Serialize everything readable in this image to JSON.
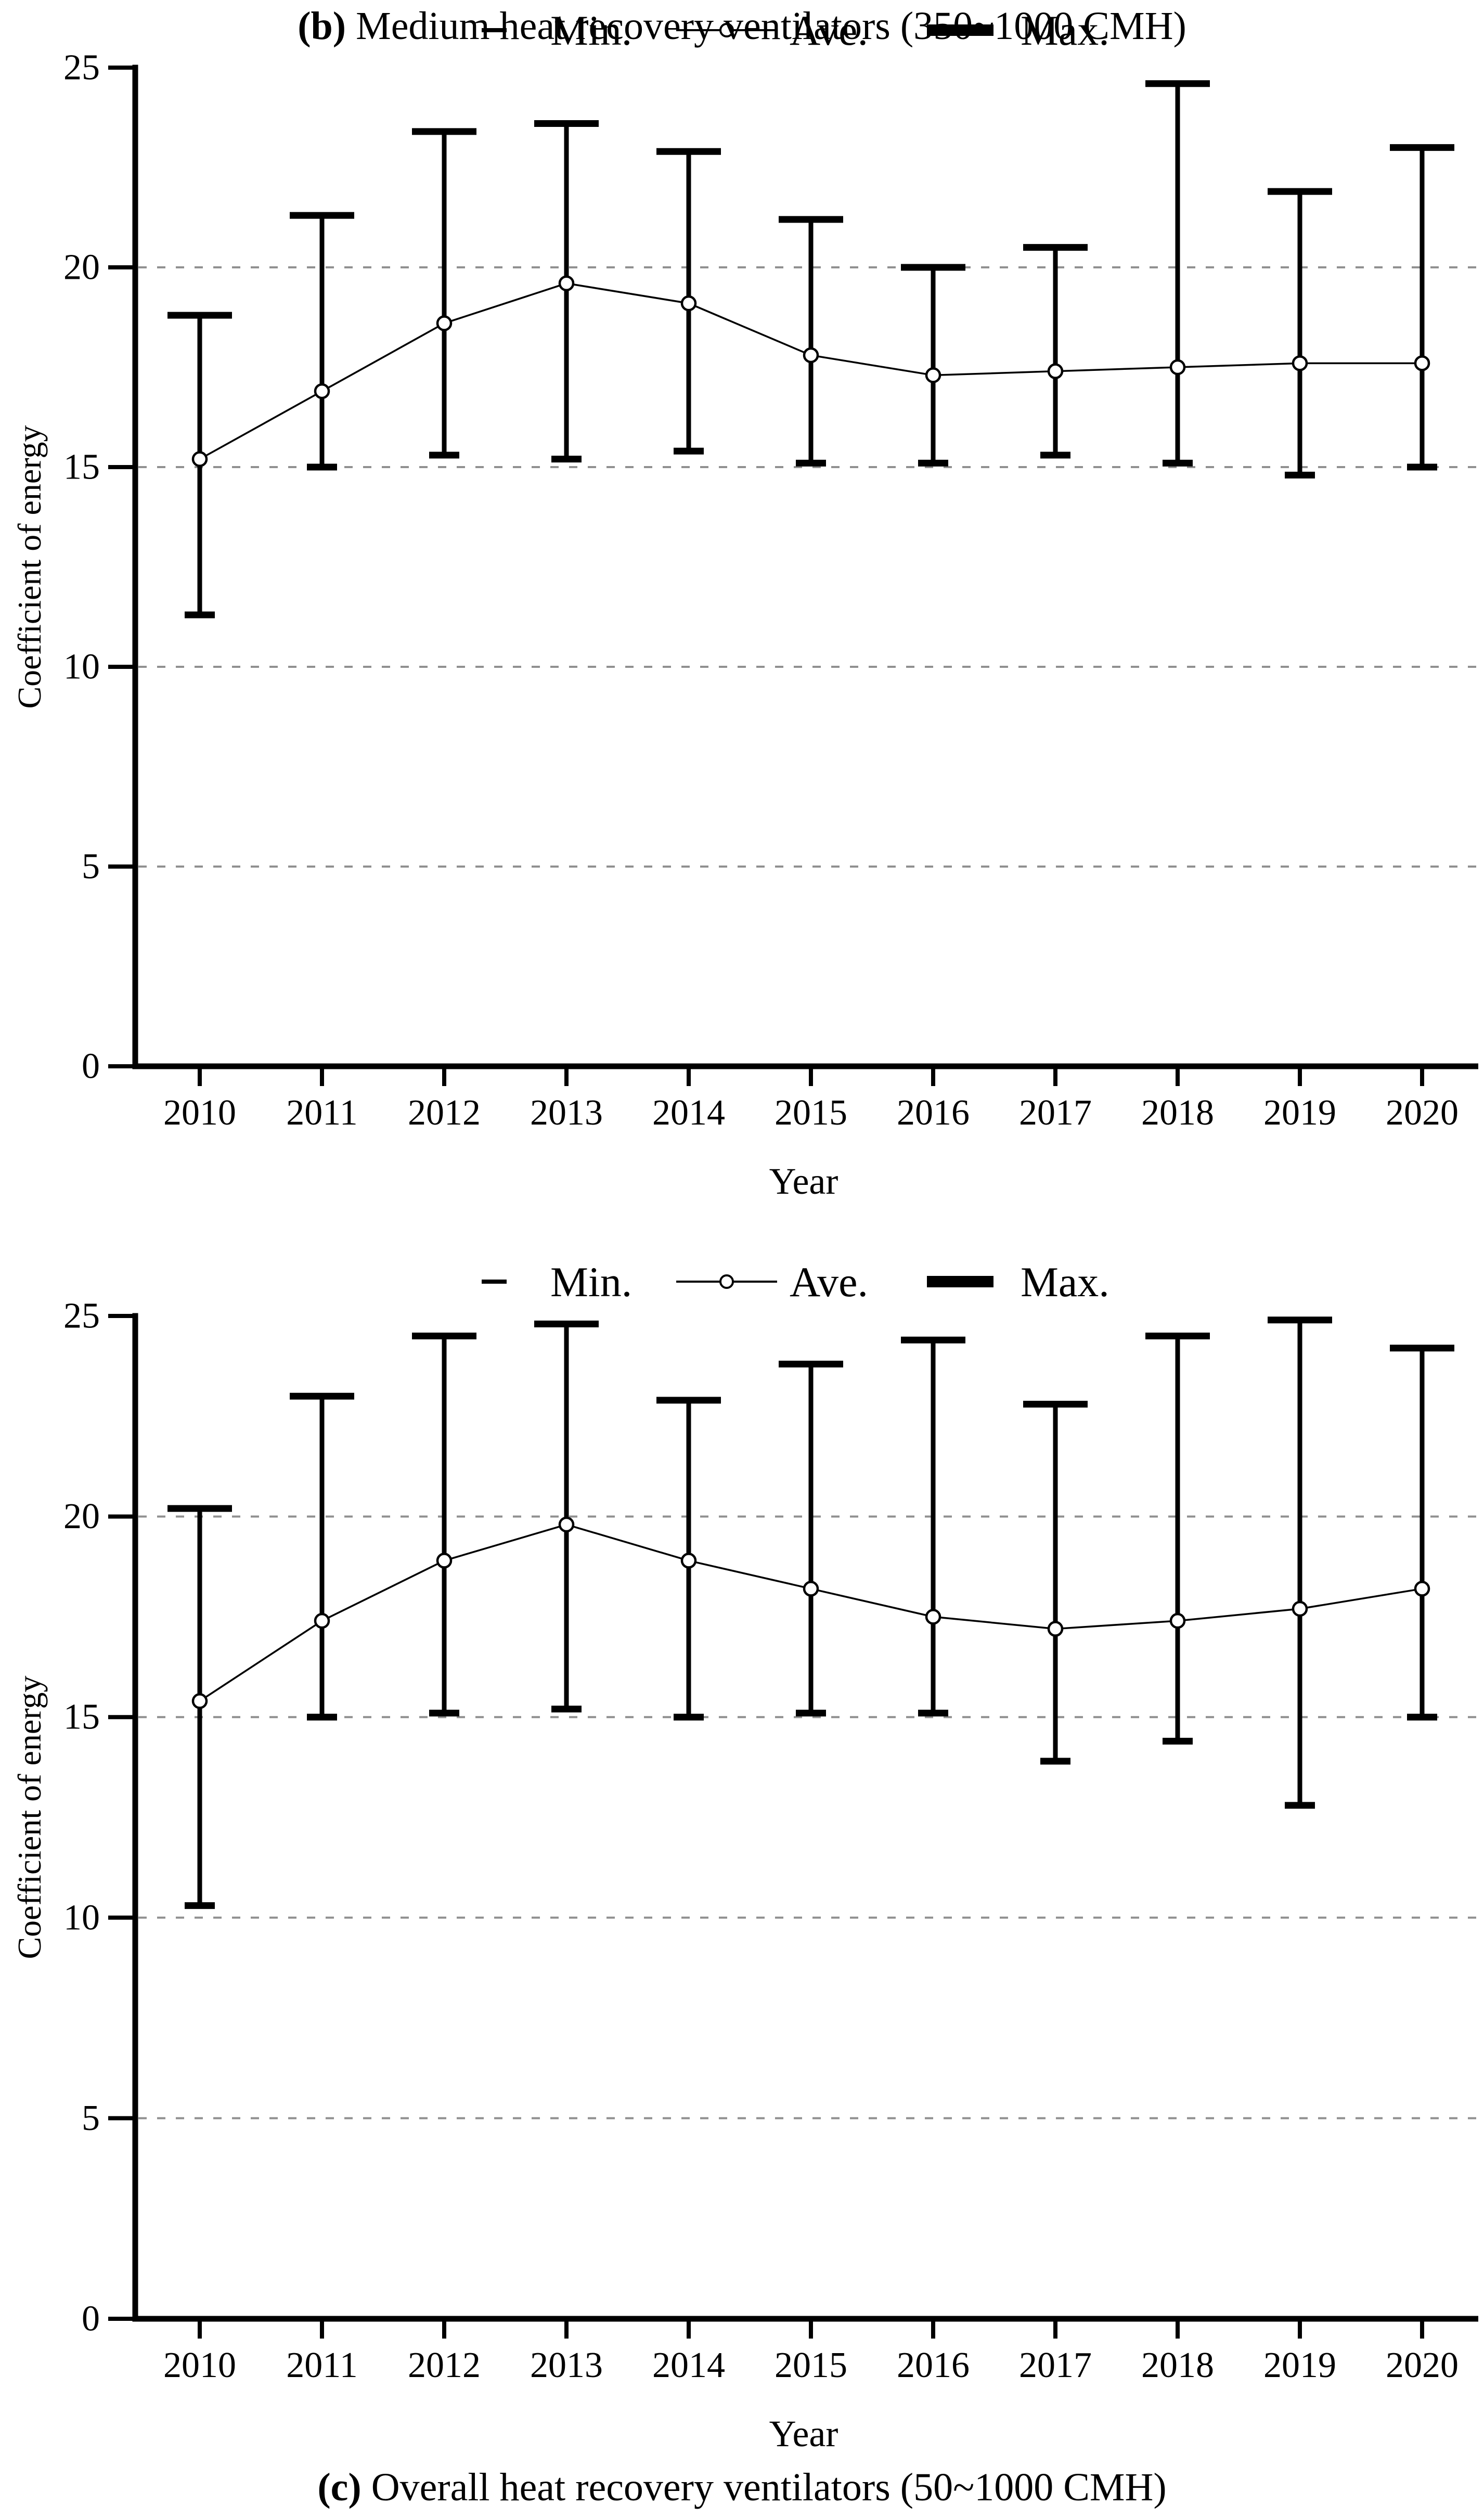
{
  "figure": {
    "background": "#ffffff",
    "ink_color": "#000000",
    "gridline_color": "#909090",
    "marker_fill": "#ffffff"
  },
  "legend": {
    "items": [
      {
        "label": "Min.",
        "symbol": "thin-dash"
      },
      {
        "label": "Ave.",
        "symbol": "line-with-open-circle"
      },
      {
        "label": "Max.",
        "symbol": "thick-dash"
      }
    ]
  },
  "axes": {
    "y_label": "Coefficient of energy",
    "x_label": "Year",
    "y_ticks": [
      "0",
      "5",
      "10",
      "15",
      "20",
      "25"
    ],
    "y_range": [
      0,
      25
    ],
    "gridlines_at": [
      5,
      10,
      15,
      20
    ]
  },
  "chart_data": [
    {
      "id": "b",
      "type": "line-errorbar",
      "caption_prefix": "(b)",
      "caption_text": " Medium heat recovery ventilators (350~1000 CMH)",
      "xlabel": "Year",
      "ylabel": "Coefficient of energy",
      "ylim": [
        0,
        25
      ],
      "grid": "dashed-horizontal",
      "legend_position": "top-center",
      "categories": [
        "2010",
        "2011",
        "2012",
        "2013",
        "2014",
        "2015",
        "2016",
        "2017",
        "2018",
        "2019",
        "2020"
      ],
      "series": [
        {
          "name": "Min.",
          "values": [
            11.3,
            15.0,
            15.3,
            15.2,
            15.4,
            15.1,
            15.1,
            15.3,
            15.1,
            14.8,
            15.0
          ]
        },
        {
          "name": "Ave.",
          "values": [
            15.2,
            16.9,
            18.6,
            19.6,
            19.1,
            17.8,
            17.3,
            17.4,
            17.5,
            17.6,
            17.6
          ]
        },
        {
          "name": "Max.",
          "values": [
            18.8,
            21.3,
            23.4,
            23.6,
            22.9,
            21.2,
            20.0,
            20.5,
            24.6,
            21.9,
            23.0
          ]
        }
      ]
    },
    {
      "id": "c",
      "type": "line-errorbar",
      "caption_prefix": "(c)",
      "caption_text": " Overall heat recovery ventilators (50~1000 CMH)",
      "xlabel": "Year",
      "ylabel": "Coefficient of energy",
      "ylim": [
        0,
        25
      ],
      "grid": "dashed-horizontal",
      "legend_position": "top-center",
      "categories": [
        "2010",
        "2011",
        "2012",
        "2013",
        "2014",
        "2015",
        "2016",
        "2017",
        "2018",
        "2019",
        "2020"
      ],
      "series": [
        {
          "name": "Min.",
          "values": [
            10.3,
            15.0,
            15.1,
            15.2,
            15.0,
            15.1,
            15.1,
            13.9,
            14.4,
            12.8,
            15.0
          ]
        },
        {
          "name": "Ave.",
          "values": [
            15.4,
            17.4,
            18.9,
            19.8,
            18.9,
            18.2,
            17.5,
            17.2,
            17.4,
            17.7,
            18.2
          ]
        },
        {
          "name": "Max.",
          "values": [
            20.2,
            23.0,
            24.5,
            24.8,
            22.9,
            23.8,
            24.4,
            22.8,
            24.5,
            24.9,
            24.2
          ]
        }
      ]
    }
  ]
}
